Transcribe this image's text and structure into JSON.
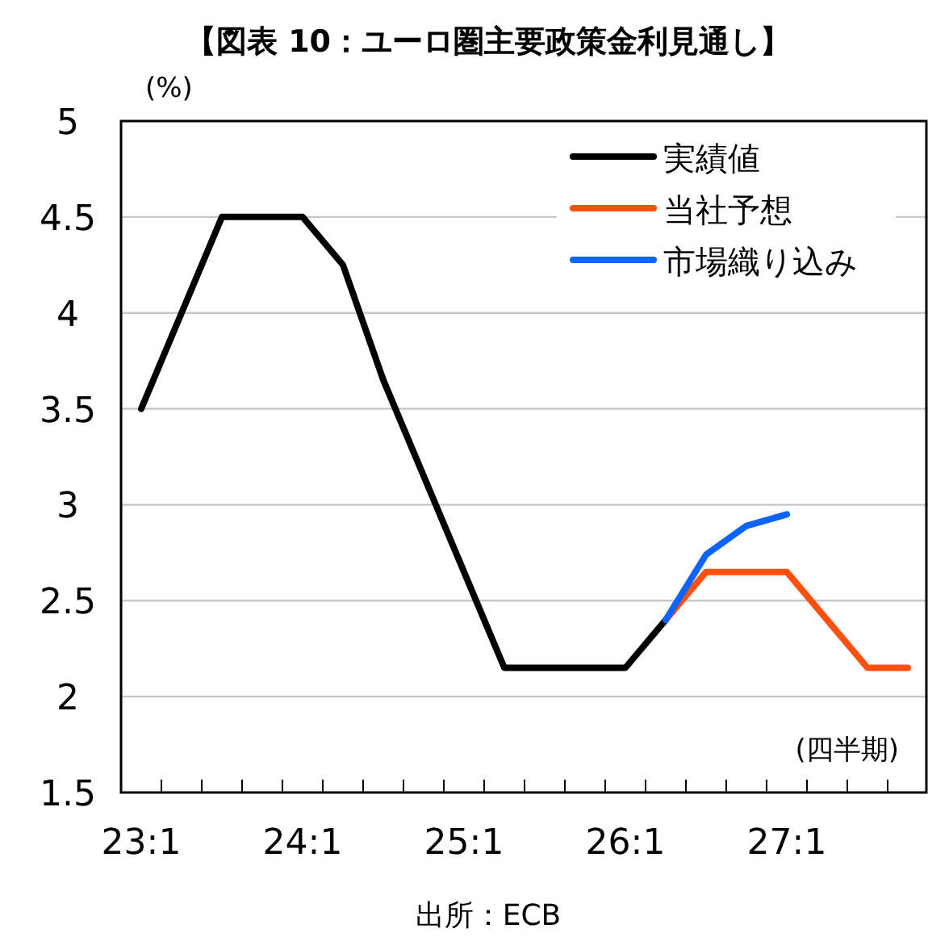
{
  "chart_data": {
    "type": "line",
    "title": "【図表 10：ユーロ圏主要政策金利見通し】",
    "ylabel": "(%)",
    "xlabel": "(四半期)",
    "annotations": [
      "出所：ECB"
    ],
    "categories": [
      "23:1",
      null,
      null,
      null,
      "24:1",
      null,
      null,
      null,
      "25:1",
      null,
      null,
      null,
      "26:1",
      null,
      null,
      null,
      "27:1",
      null,
      null,
      null
    ],
    "series": [
      {
        "name": "実績値",
        "color": "#000000",
        "values": [
          3.5,
          4.0,
          4.5,
          4.5,
          4.5,
          4.25,
          3.65,
          3.15,
          2.65,
          2.15,
          2.15,
          2.15,
          2.15,
          2.4,
          null,
          null,
          null,
          null,
          null,
          null
        ]
      },
      {
        "name": "当社予想",
        "color": "#ff5010",
        "values": [
          null,
          null,
          null,
          null,
          null,
          null,
          null,
          null,
          null,
          null,
          null,
          null,
          null,
          2.4,
          2.65,
          2.65,
          2.65,
          2.4,
          2.15,
          2.15
        ]
      },
      {
        "name": "市場織り込み",
        "color": "#0a64ff",
        "values": [
          null,
          null,
          null,
          null,
          null,
          null,
          null,
          null,
          null,
          null,
          null,
          null,
          null,
          2.4,
          2.74,
          2.89,
          2.95,
          null,
          null,
          null
        ]
      }
    ],
    "ylim": [
      1.5,
      5
    ],
    "yticks": [
      1.5,
      2,
      2.5,
      3,
      3.5,
      4,
      4.5,
      5
    ],
    "grid": "y",
    "legend": "top right",
    "line_style": "solid",
    "marker": "none"
  }
}
